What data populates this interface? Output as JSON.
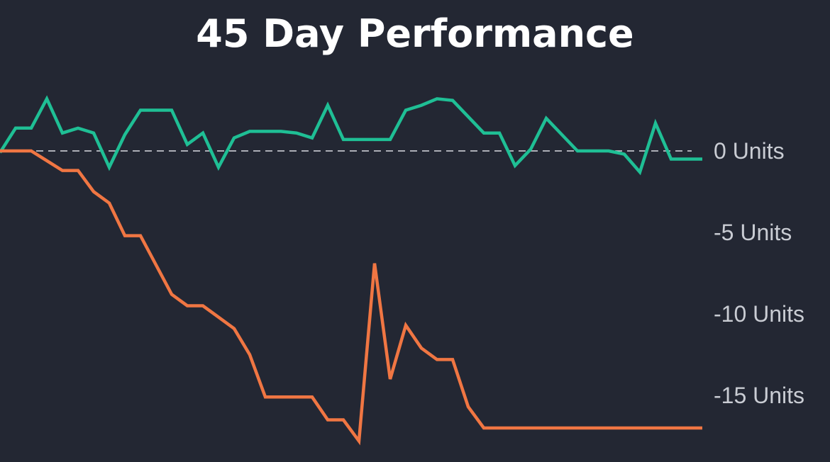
{
  "chart_data": {
    "type": "line",
    "title": "45 Day Performance",
    "xlabel": "",
    "ylabel": "",
    "y_unit": "Units",
    "ylim": [
      -18,
      3.5
    ],
    "yticks": [
      {
        "value": 0,
        "label": "0 Units"
      },
      {
        "value": -5,
        "label": "-5 Units"
      },
      {
        "value": -10,
        "label": "-10 Units"
      },
      {
        "value": -15,
        "label": "-15 Units"
      }
    ],
    "zero_line": "dashed",
    "grid": false,
    "legend": "none",
    "x": [
      0,
      1,
      2,
      3,
      4,
      5,
      6,
      7,
      8,
      9,
      10,
      11,
      12,
      13,
      14,
      15,
      16,
      17,
      18,
      19,
      20,
      21,
      22,
      23,
      24,
      25,
      26,
      27,
      28,
      29,
      30,
      31,
      32,
      33,
      34,
      35,
      36,
      37,
      38,
      39,
      40,
      41,
      42,
      43,
      44,
      45
    ],
    "series": [
      {
        "color": "#1fbf95",
        "values": [
          -0.1,
          1.4,
          1.4,
          3.2,
          1.1,
          1.4,
          1.1,
          -1.0,
          1.0,
          2.5,
          2.5,
          2.5,
          0.4,
          1.1,
          -1.0,
          0.8,
          1.2,
          1.2,
          1.2,
          1.1,
          0.8,
          2.8,
          0.7,
          0.7,
          0.7,
          0.7,
          2.5,
          2.8,
          3.2,
          3.1,
          2.1,
          1.1,
          1.1,
          -0.9,
          0.1,
          2.0,
          1.0,
          0.0,
          0.0,
          0.0,
          -0.2,
          -1.3,
          1.7,
          -0.5,
          -0.5,
          -0.5
        ]
      },
      {
        "color": "#f07643",
        "values": [
          0.0,
          0.0,
          0.0,
          -0.6,
          -1.2,
          -1.2,
          -2.5,
          -3.2,
          -5.2,
          -5.2,
          -7.0,
          -8.8,
          -9.5,
          -9.5,
          -10.2,
          -10.9,
          -12.5,
          -15.1,
          -15.1,
          -15.1,
          -15.1,
          -16.5,
          -16.5,
          -17.8,
          -6.9,
          -14.0,
          -10.7,
          -12.1,
          -12.8,
          -12.8,
          -15.7,
          -17.0,
          -17.0,
          -17.0,
          -17.0,
          -17.0,
          -17.0,
          -17.0,
          -17.0,
          -17.0,
          -17.0,
          -17.0,
          -17.0,
          -17.0,
          -17.0,
          -17.0
        ]
      }
    ]
  }
}
